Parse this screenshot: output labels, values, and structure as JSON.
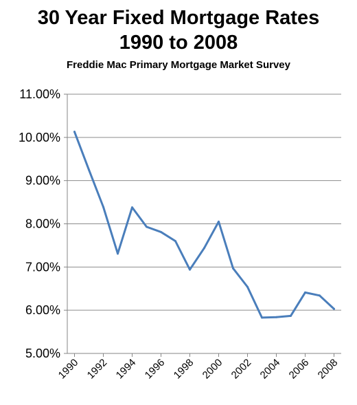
{
  "chart_data": {
    "type": "line",
    "title_line1": "30 Year Fixed Mortgage Rates",
    "title_line2": "1990 to 2008",
    "subtitle": "Freddie Mac Primary Mortgage Market Survey",
    "x": [
      1990,
      1991,
      1992,
      1993,
      1994,
      1995,
      1996,
      1997,
      1998,
      1999,
      2000,
      2001,
      2002,
      2003,
      2004,
      2005,
      2006,
      2007,
      2008
    ],
    "series": [
      {
        "values": [
          10.13,
          9.25,
          8.39,
          7.31,
          8.38,
          7.93,
          7.81,
          7.6,
          6.94,
          7.44,
          8.05,
          6.97,
          6.54,
          5.83,
          5.84,
          5.87,
          6.41,
          6.34,
          6.03
        ]
      }
    ],
    "ylim": [
      5.0,
      11.0
    ],
    "yticks": [
      5.0,
      6.0,
      7.0,
      8.0,
      9.0,
      10.0,
      11.0
    ],
    "ytick_labels": [
      "5.00%",
      "6.00%",
      "7.00%",
      "8.00%",
      "9.00%",
      "10.00%",
      "11.00%"
    ],
    "xtick_labels": [
      "1990",
      "1992",
      "1994",
      "1996",
      "1998",
      "2000",
      "2002",
      "2004",
      "2006",
      "2008"
    ],
    "xtick_values": [
      1990,
      1992,
      1994,
      1996,
      1998,
      2000,
      2002,
      2004,
      2006,
      2008
    ],
    "grid": true,
    "line_color": "#4a7ebb",
    "grid_color": "#8c8c8c"
  }
}
